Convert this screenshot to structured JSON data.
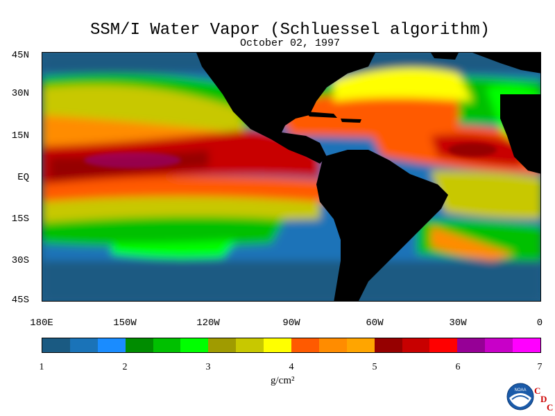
{
  "title": "SSM/I Water Vapor (Schluessel algorithm)",
  "date": "October 02, 1997",
  "map": {
    "lat_labels": [
      "45N",
      "30N",
      "15N",
      "EQ",
      "15S",
      "30S",
      "45S"
    ],
    "lon_labels": [
      "180E",
      "150W",
      "120W",
      "90W",
      "60W",
      "30W",
      "0"
    ],
    "land_color": "#000000"
  },
  "colorbar": {
    "colors": [
      "#1a5a82",
      "#1a73b8",
      "#1a8cff",
      "#008c00",
      "#00c000",
      "#00ff00",
      "#a09b00",
      "#c8c800",
      "#ffff00",
      "#ff5a00",
      "#ff8c00",
      "#ffa500",
      "#960000",
      "#c80000",
      "#ff0000",
      "#960096",
      "#c800c8",
      "#ff00ff"
    ],
    "ticks": [
      "1",
      "2",
      "3",
      "4",
      "5",
      "6",
      "7"
    ],
    "range": [
      1,
      7
    ],
    "units": "g/cm²"
  },
  "logo": {
    "name": "NOAA",
    "cdc_letters": [
      "C",
      "D",
      "C"
    ]
  }
}
